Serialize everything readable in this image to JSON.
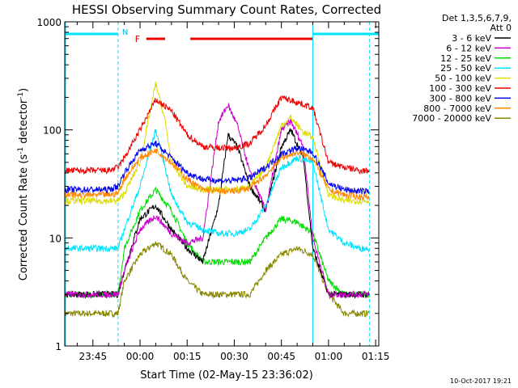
{
  "chart_data": {
    "type": "line",
    "title": "HESSI Observing Summary Count Rates, Corrected",
    "xlabel": "Start Time (02-May-15 23:36:02)",
    "ylabel_main": "Corrected Count Rate (s",
    "ylabel_sup1": "-1",
    "ylabel_mid": " detector",
    "ylabel_sup2": "-1",
    "ylabel_end": ")",
    "y_scale": "log",
    "ylim": [
      1,
      1000
    ],
    "xlim": [
      "23:36:02",
      "01:16:00"
    ],
    "x_ticks": [
      "23:45",
      "00:00",
      "00:15",
      "00:30",
      "00:45",
      "01:00",
      "01:15"
    ],
    "y_ticks": [
      "1",
      "10",
      "100",
      "1000"
    ],
    "grid": false,
    "legend_header": [
      "Det 1,3,5,6,7,9,",
      "Att 0"
    ],
    "legend_placement": "right",
    "timestamp": "10-Oct-2017 19:21",
    "annotations": {
      "night_label": "N",
      "flare_label": "F",
      "night_intervals": [
        [
          "23:36:02",
          "23:53:00"
        ],
        [
          "00:55:00",
          "01:16:00"
        ]
      ],
      "flare_intervals": [
        [
          "00:02:00",
          "00:08:00"
        ],
        [
          "00:16:00",
          "00:55:00"
        ]
      ],
      "vertical_markers": [
        "23:53:00",
        "00:55:00",
        "01:13:00"
      ]
    },
    "series": [
      {
        "name": "3 - 6 keV",
        "color": "#000000",
        "x": [
          "23:36",
          "23:50",
          "23:53",
          "23:55",
          "00:00",
          "00:05",
          "00:10",
          "00:15",
          "00:20",
          "00:25",
          "00:28",
          "00:31",
          "00:35",
          "00:40",
          "00:45",
          "00:48",
          "00:52",
          "00:55",
          "01:00",
          "01:05",
          "01:10",
          "01:13"
        ],
        "values": [
          3,
          3,
          3,
          5,
          15,
          20,
          12,
          8,
          6,
          20,
          90,
          70,
          30,
          18,
          70,
          100,
          55,
          8,
          3,
          3,
          3,
          3
        ]
      },
      {
        "name": "6 - 12 keV",
        "color": "#cc00cc",
        "x": [
          "23:36",
          "23:50",
          "23:53",
          "23:55",
          "00:00",
          "00:05",
          "00:10",
          "00:15",
          "00:20",
          "00:25",
          "00:28",
          "00:31",
          "00:35",
          "00:40",
          "00:45",
          "00:48",
          "00:52",
          "00:55",
          "01:00",
          "01:05",
          "01:10",
          "01:13"
        ],
        "values": [
          3,
          3,
          3,
          5,
          12,
          16,
          11,
          9,
          10,
          120,
          170,
          110,
          40,
          18,
          100,
          120,
          70,
          10,
          3,
          3,
          3,
          3
        ]
      },
      {
        "name": "12 - 25 keV",
        "color": "#00dd00",
        "x": [
          "23:36",
          "23:50",
          "23:53",
          "23:55",
          "00:00",
          "00:05",
          "00:10",
          "00:15",
          "00:20",
          "00:25",
          "00:30",
          "00:35",
          "00:40",
          "00:45",
          "00:50",
          "00:55",
          "01:00",
          "01:05",
          "01:10",
          "01:13"
        ],
        "values": [
          3,
          3,
          3,
          8,
          18,
          28,
          18,
          9,
          6,
          6,
          6,
          6,
          10,
          15,
          14,
          11,
          4,
          3,
          3,
          3
        ]
      },
      {
        "name": "25 - 50 keV",
        "color": "#00e5ff",
        "x": [
          "23:36",
          "23:50",
          "23:53",
          "23:55",
          "00:00",
          "00:05",
          "00:08",
          "00:10",
          "00:15",
          "00:20",
          "00:25",
          "00:30",
          "00:35",
          "00:40",
          "00:45",
          "00:50",
          "00:55",
          "01:00",
          "01:05",
          "01:10",
          "01:13"
        ],
        "values": [
          8,
          8,
          8,
          12,
          30,
          100,
          45,
          25,
          14,
          12,
          11,
          11,
          12,
          20,
          45,
          55,
          50,
          12,
          9,
          8,
          8
        ]
      },
      {
        "name": "50 - 100 keV",
        "color": "#dddd00",
        "x": [
          "23:36",
          "23:50",
          "23:53",
          "23:55",
          "00:00",
          "00:05",
          "00:08",
          "00:10",
          "00:15",
          "00:20",
          "00:25",
          "00:30",
          "00:35",
          "00:40",
          "00:45",
          "00:48",
          "00:52",
          "00:55",
          "01:00",
          "01:05",
          "01:10",
          "01:13"
        ],
        "values": [
          22,
          22,
          22,
          26,
          50,
          270,
          120,
          50,
          30,
          28,
          28,
          28,
          30,
          45,
          110,
          130,
          95,
          85,
          25,
          22,
          22,
          22
        ]
      },
      {
        "name": "100 - 300 keV",
        "color": "#ee0000",
        "x": [
          "23:36",
          "23:50",
          "23:53",
          "23:55",
          "00:00",
          "00:05",
          "00:10",
          "00:15",
          "00:20",
          "00:25",
          "00:30",
          "00:35",
          "00:40",
          "00:45",
          "00:50",
          "00:55",
          "01:00",
          "01:05",
          "01:10",
          "01:13"
        ],
        "values": [
          42,
          42,
          45,
          55,
          100,
          190,
          150,
          90,
          70,
          68,
          68,
          75,
          110,
          200,
          180,
          160,
          50,
          45,
          42,
          42
        ]
      },
      {
        "name": "300 - 800 keV",
        "color": "#0000ee",
        "x": [
          "23:36",
          "23:50",
          "23:53",
          "23:55",
          "00:00",
          "00:05",
          "00:10",
          "00:15",
          "00:20",
          "00:25",
          "00:30",
          "00:35",
          "00:40",
          "00:45",
          "00:50",
          "00:55",
          "01:00",
          "01:05",
          "01:10",
          "01:13"
        ],
        "values": [
          28,
          28,
          30,
          40,
          65,
          75,
          55,
          40,
          35,
          34,
          34,
          36,
          45,
          60,
          68,
          62,
          32,
          28,
          27,
          27
        ]
      },
      {
        "name": "800 - 7000 keV",
        "color": "#ff8800",
        "x": [
          "23:36",
          "23:50",
          "23:53",
          "23:55",
          "00:00",
          "00:05",
          "00:10",
          "00:15",
          "00:20",
          "00:25",
          "00:30",
          "00:35",
          "00:40",
          "00:45",
          "00:50",
          "00:55",
          "01:00",
          "01:05",
          "01:10",
          "01:13"
        ],
        "values": [
          25,
          25,
          26,
          35,
          55,
          65,
          50,
          35,
          28,
          27,
          27,
          29,
          38,
          55,
          62,
          55,
          28,
          25,
          24,
          24
        ]
      },
      {
        "name": "7000 - 20000 keV",
        "color": "#888800",
        "x": [
          "23:36",
          "23:50",
          "23:53",
          "23:55",
          "00:00",
          "00:05",
          "00:10",
          "00:15",
          "00:20",
          "00:25",
          "00:30",
          "00:35",
          "00:40",
          "00:45",
          "00:50",
          "00:55",
          "01:00",
          "01:05",
          "01:10",
          "01:13"
        ],
        "values": [
          2,
          2,
          2,
          4,
          7,
          9,
          7,
          4,
          3,
          3,
          3,
          3,
          5,
          7,
          8,
          7,
          3,
          2,
          2,
          2
        ]
      }
    ]
  }
}
